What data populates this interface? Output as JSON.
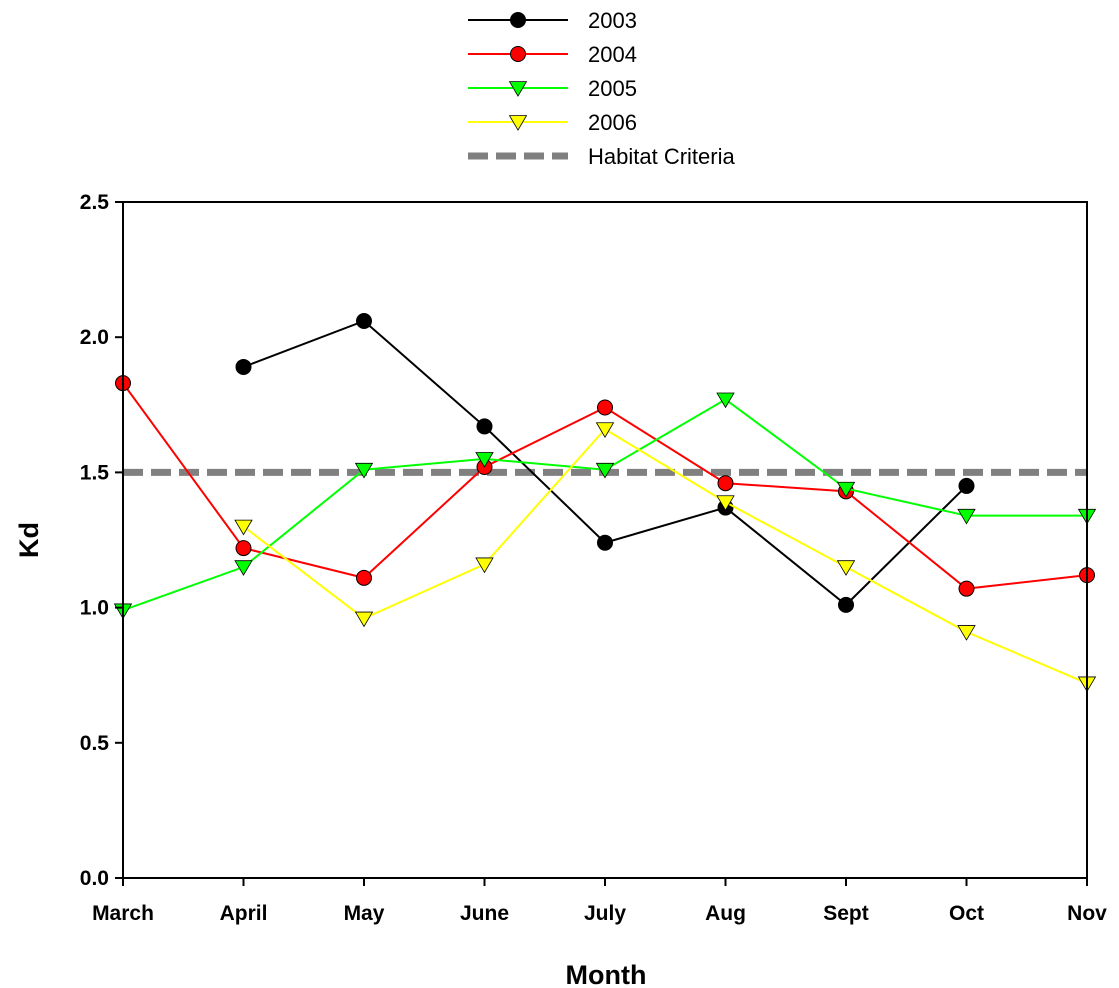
{
  "chart_data": {
    "type": "line",
    "title": "",
    "xlabel": "Month",
    "ylabel": "Kd",
    "categories": [
      "March",
      "April",
      "May",
      "June",
      "July",
      "Aug",
      "Sept",
      "Oct",
      "Nov"
    ],
    "ylim": [
      0,
      2.5
    ],
    "yticks": [
      "0.0",
      "0.5",
      "1.0",
      "1.5",
      "2.0",
      "2.5"
    ],
    "grid": false,
    "legend_position": "top-center",
    "series": [
      {
        "name": "2003",
        "color": "#000000",
        "marker": "circle",
        "values": [
          null,
          1.89,
          2.06,
          1.67,
          1.24,
          1.37,
          1.01,
          1.45,
          null
        ]
      },
      {
        "name": "2004",
        "color": "#ff0000",
        "marker": "circle",
        "values": [
          1.83,
          1.22,
          1.11,
          1.52,
          1.74,
          1.46,
          1.43,
          1.07,
          1.12
        ]
      },
      {
        "name": "2005",
        "color": "#00ff00",
        "marker": "triangle-down",
        "values": [
          0.99,
          1.15,
          1.51,
          1.55,
          1.51,
          1.77,
          1.44,
          1.34,
          1.34
        ]
      },
      {
        "name": "2006",
        "color": "#ffff00",
        "marker": "triangle-down",
        "values": [
          null,
          1.3,
          0.96,
          1.16,
          1.66,
          1.39,
          1.15,
          0.91,
          0.72
        ]
      }
    ],
    "reference_line": {
      "name": "Habitat Criteria",
      "value": 1.5,
      "color": "#808080",
      "style": "dashed"
    }
  }
}
